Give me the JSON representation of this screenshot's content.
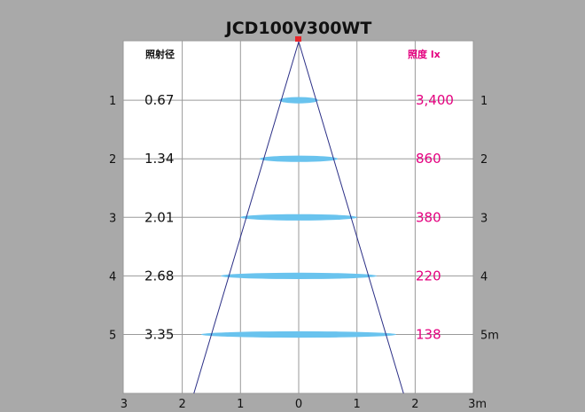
{
  "title": "JCD100V300WT",
  "left_header": "照射径",
  "right_header": "照度 lx",
  "colors": {
    "background": "#a9a9a9",
    "panel": "#ffffff",
    "grid": "#9a9a9a",
    "cone": "#2b2f86",
    "beam": "#69c3ee",
    "lux_text": "#e4007f",
    "source": "#e8262b"
  },
  "chart_data": {
    "type": "diagram",
    "x_ticks": [
      {
        "value": -3,
        "label": "3"
      },
      {
        "value": -2,
        "label": "2"
      },
      {
        "value": -1,
        "label": "1"
      },
      {
        "value": 0,
        "label": "0"
      },
      {
        "value": 1,
        "label": "1"
      },
      {
        "value": 2,
        "label": "2"
      },
      {
        "value": 3,
        "label": "3m"
      }
    ],
    "xlim": [
      -3,
      3
    ],
    "ylim": [
      0,
      6
    ],
    "cone_half_width_at_6m": 1.8,
    "rows": [
      {
        "distance": 1,
        "left_label": "1",
        "right_label": "1",
        "diameter": "0.67",
        "lux": "3,400"
      },
      {
        "distance": 2,
        "left_label": "2",
        "right_label": "2",
        "diameter": "1.34",
        "lux": "860"
      },
      {
        "distance": 3,
        "left_label": "3",
        "right_label": "3",
        "diameter": "2.01",
        "lux": "380"
      },
      {
        "distance": 4,
        "left_label": "4",
        "right_label": "4",
        "diameter": "2.68",
        "lux": "220"
      },
      {
        "distance": 5,
        "left_label": "5",
        "right_label": "5m",
        "diameter": "3.35",
        "lux": "138"
      }
    ]
  }
}
